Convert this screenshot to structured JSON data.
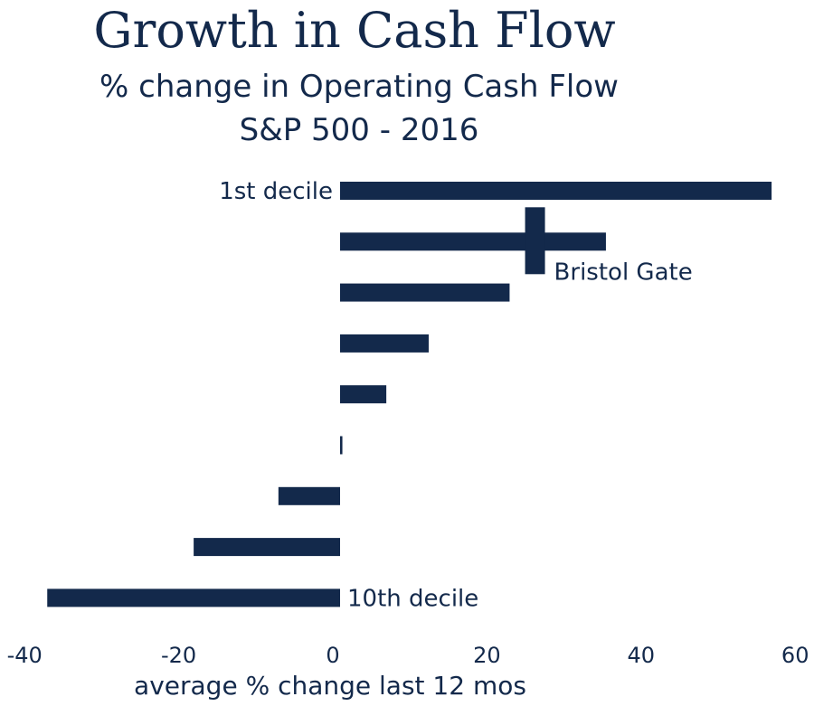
{
  "chart_data": {
    "type": "bar",
    "orientation": "horizontal",
    "title": "Growth in Cash Flow",
    "subtitle_line1": "% change in Operating Cash Flow",
    "subtitle_line2": "S&P 500 - 2016",
    "xlabel": "average % change last 12 mos",
    "xlim": [
      -40,
      60
    ],
    "xticks": [
      "-40",
      "-20",
      "0",
      "20",
      "40",
      "60"
    ],
    "category_labels": {
      "first": "1st decile",
      "last": "10th decile"
    },
    "values": [
      56,
      34.5,
      22,
      11.5,
      6,
      0.3,
      -8,
      -19,
      -38
    ],
    "marker": {
      "label": "Bristol Gate",
      "value": 25.3,
      "row": 1
    },
    "color": "#13294b"
  }
}
